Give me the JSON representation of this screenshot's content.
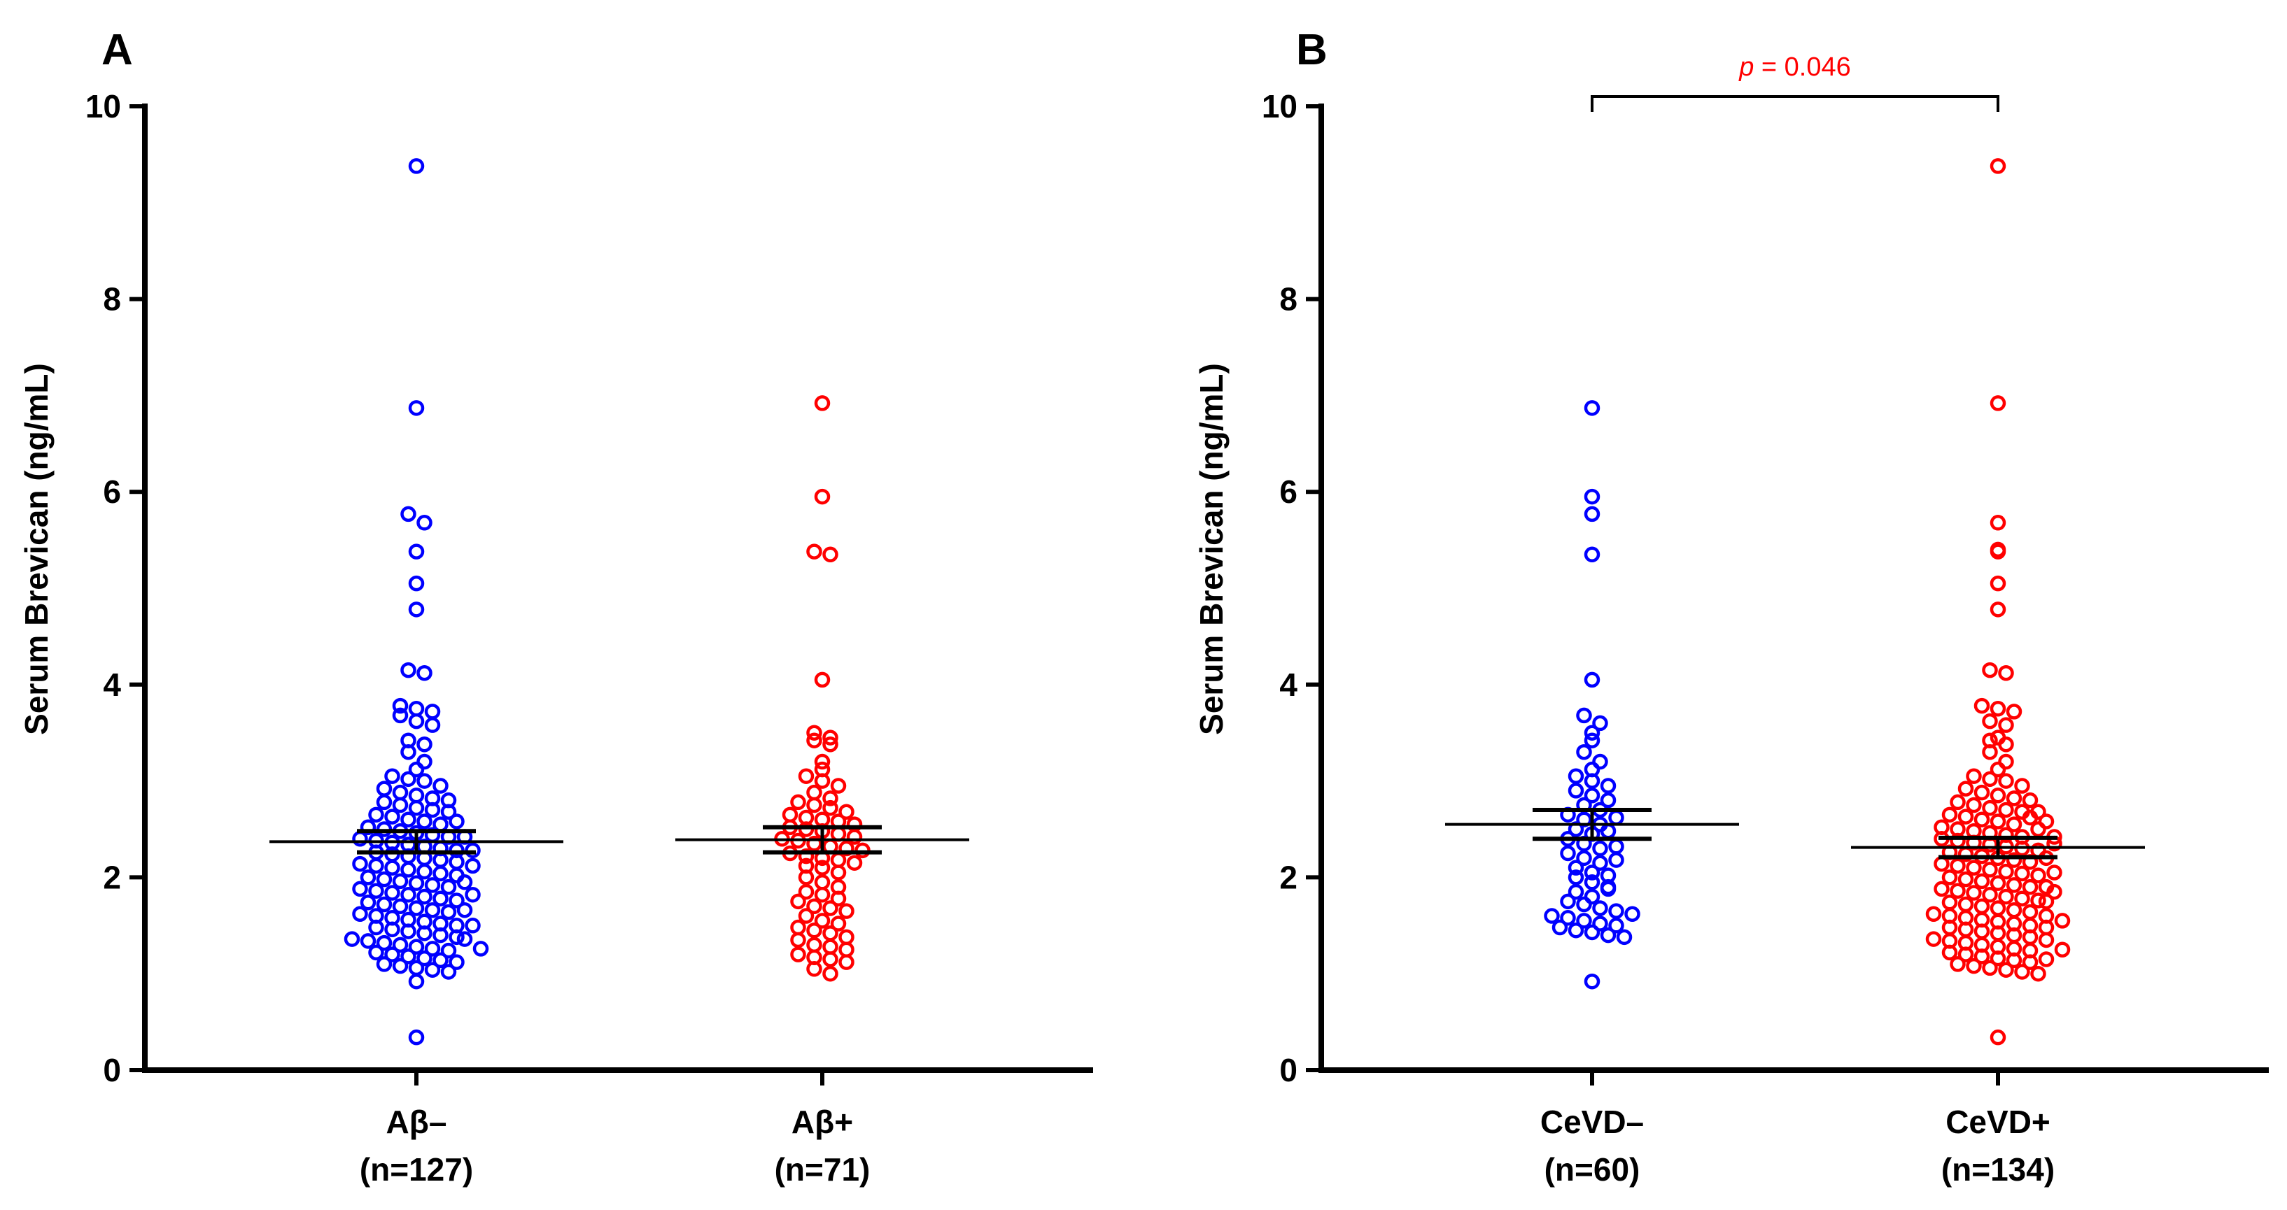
{
  "chart_data": [
    {
      "type": "scatter",
      "panel": "A",
      "title": "",
      "ylabel": "Serum Brevican (ng/mL)",
      "ylim": [
        0,
        10
      ],
      "yticks": [
        0,
        2,
        4,
        6,
        8,
        10
      ],
      "categories": [
        "Aβ–\n(n=127)",
        "Aβ+\n(n=71)"
      ],
      "series": [
        {
          "name": "Aβ–",
          "label_line1": "Aβ–",
          "label_line2": "(n=127)",
          "n": 127,
          "color": "#0000ff",
          "mean": 2.37,
          "sem": 0.11,
          "values": [
            9.38,
            6.87,
            5.77,
            5.68,
            5.38,
            5.05,
            4.78,
            4.15,
            4.12,
            3.78,
            3.75,
            3.72,
            3.68,
            3.62,
            3.58,
            3.42,
            3.38,
            3.3,
            3.2,
            3.12,
            3.05,
            3.02,
            3.0,
            2.95,
            2.92,
            2.88,
            2.85,
            2.82,
            2.8,
            2.78,
            2.75,
            2.72,
            2.7,
            2.68,
            2.65,
            2.63,
            2.6,
            2.58,
            2.55,
            2.52,
            2.5,
            2.48,
            2.46,
            2.44,
            2.42,
            2.4,
            2.38,
            2.36,
            2.34,
            2.32,
            2.3,
            2.28,
            2.26,
            2.24,
            2.22,
            2.2,
            2.18,
            2.16,
            2.14,
            2.12,
            2.1,
            2.08,
            2.06,
            2.04,
            2.02,
            2.0,
            1.98,
            1.96,
            1.94,
            1.92,
            1.9,
            1.88,
            1.86,
            1.84,
            1.82,
            1.8,
            1.78,
            1.76,
            1.74,
            1.72,
            1.7,
            1.68,
            1.66,
            1.64,
            1.62,
            1.6,
            1.58,
            1.56,
            1.54,
            1.52,
            1.5,
            1.48,
            1.46,
            1.44,
            1.42,
            1.4,
            1.38,
            1.36,
            1.34,
            1.32,
            1.3,
            1.28,
            1.26,
            1.24,
            1.22,
            1.2,
            1.18,
            1.16,
            1.14,
            1.12,
            1.1,
            1.08,
            1.06,
            1.04,
            1.02,
            0.92,
            0.34,
            2.58,
            2.42,
            2.28,
            2.12,
            1.95,
            1.82,
            1.66,
            1.5,
            1.36,
            1.26
          ]
        },
        {
          "name": "Aβ+",
          "label_line1": "Aβ+",
          "label_line2": "(n=71)",
          "n": 71,
          "color": "#ff0000",
          "mean": 2.39,
          "sem": 0.13,
          "values": [
            6.92,
            5.95,
            5.38,
            5.35,
            4.05,
            3.5,
            3.45,
            3.42,
            3.38,
            3.2,
            3.12,
            3.05,
            3.0,
            2.95,
            2.88,
            2.82,
            2.78,
            2.75,
            2.72,
            2.68,
            2.65,
            2.62,
            2.6,
            2.58,
            2.55,
            2.52,
            2.5,
            2.48,
            2.45,
            2.42,
            2.4,
            2.38,
            2.35,
            2.32,
            2.3,
            2.28,
            2.25,
            2.22,
            2.2,
            2.18,
            2.15,
            2.12,
            2.1,
            2.05,
            2.0,
            1.95,
            1.9,
            1.85,
            1.82,
            1.78,
            1.75,
            1.7,
            1.68,
            1.65,
            1.6,
            1.55,
            1.52,
            1.48,
            1.45,
            1.42,
            1.38,
            1.35,
            1.3,
            1.28,
            1.25,
            1.2,
            1.17,
            1.15,
            1.12,
            1.05,
            1.0
          ]
        }
      ]
    },
    {
      "type": "scatter",
      "panel": "B",
      "title": "",
      "ylabel": "Serum Brevican (ng/mL)",
      "ylim": [
        0,
        10
      ],
      "yticks": [
        0,
        2,
        4,
        6,
        8,
        10
      ],
      "categories": [
        "CeVD–\n(n=60)",
        "CeVD+\n(n=134)"
      ],
      "significance": {
        "prefix": "p",
        "text": " = 0.046",
        "between": [
          0,
          1
        ],
        "color": "#ff0000"
      },
      "series": [
        {
          "name": "CeVD–",
          "label_line1": "CeVD–",
          "label_line2": "(n=60)",
          "n": 60,
          "color": "#0000ff",
          "mean": 2.55,
          "sem": 0.15,
          "values": [
            6.87,
            5.95,
            5.77,
            5.35,
            4.05,
            3.68,
            3.6,
            3.5,
            3.42,
            3.3,
            3.2,
            3.12,
            3.05,
            3.0,
            2.95,
            2.9,
            2.85,
            2.8,
            2.75,
            2.7,
            2.65,
            2.6,
            2.55,
            2.5,
            2.45,
            2.4,
            2.35,
            2.3,
            2.25,
            2.2,
            2.15,
            2.1,
            2.05,
            2.0,
            1.95,
            1.9,
            1.85,
            1.8,
            1.75,
            1.72,
            1.68,
            1.65,
            1.6,
            1.58,
            1.55,
            1.52,
            1.5,
            1.48,
            1.45,
            1.43,
            1.4,
            1.38,
            2.62,
            2.48,
            2.32,
            2.18,
            2.02,
            1.88,
            1.62,
            0.92
          ]
        },
        {
          "name": "CeVD+",
          "label_line1": "CeVD+",
          "label_line2": "(n=134)",
          "n": 134,
          "color": "#ff0000",
          "mean": 2.31,
          "sem": 0.1,
          "values": [
            9.38,
            6.92,
            5.68,
            5.4,
            5.38,
            5.05,
            4.78,
            4.15,
            4.12,
            3.78,
            3.75,
            3.72,
            3.62,
            3.58,
            3.45,
            3.42,
            3.38,
            3.3,
            3.2,
            3.12,
            3.05,
            3.02,
            3.0,
            2.95,
            2.92,
            2.88,
            2.85,
            2.82,
            2.8,
            2.78,
            2.75,
            2.72,
            2.7,
            2.68,
            2.65,
            2.63,
            2.6,
            2.58,
            2.55,
            2.52,
            2.5,
            2.48,
            2.46,
            2.44,
            2.42,
            2.4,
            2.38,
            2.36,
            2.34,
            2.32,
            2.3,
            2.28,
            2.26,
            2.24,
            2.22,
            2.2,
            2.18,
            2.16,
            2.14,
            2.12,
            2.1,
            2.08,
            2.06,
            2.04,
            2.02,
            2.0,
            1.98,
            1.96,
            1.94,
            1.92,
            1.9,
            1.88,
            1.86,
            1.84,
            1.82,
            1.8,
            1.78,
            1.76,
            1.74,
            1.72,
            1.7,
            1.68,
            1.66,
            1.64,
            1.62,
            1.6,
            1.58,
            1.56,
            1.54,
            1.52,
            1.5,
            1.48,
            1.46,
            1.44,
            1.42,
            1.4,
            1.38,
            1.36,
            1.34,
            1.32,
            1.3,
            1.28,
            1.26,
            1.24,
            1.22,
            1.2,
            1.18,
            1.16,
            1.14,
            1.12,
            1.1,
            1.08,
            1.06,
            1.04,
            1.02,
            1.0,
            0.34,
            2.68,
            2.62,
            2.5,
            2.35,
            2.2,
            2.05,
            1.9,
            1.75,
            1.6,
            1.48,
            1.35,
            1.25,
            1.15,
            2.58,
            2.42,
            1.85,
            1.55
          ]
        }
      ]
    }
  ]
}
